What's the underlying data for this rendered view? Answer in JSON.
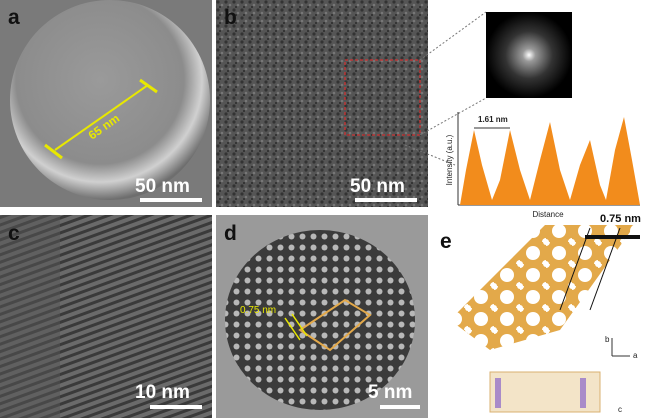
{
  "panels": [
    {
      "label": "a",
      "scale_bar": "50 nm",
      "annotation": "65 nm"
    },
    {
      "label": "b",
      "scale_bar": "50 nm"
    },
    {
      "label": "c",
      "scale_bar": "10 nm"
    },
    {
      "label": "d",
      "scale_bar": "5 nm",
      "annotation": "0.75 nm"
    },
    {
      "label": "e",
      "annotation": "0.75 nm",
      "axes": [
        "b",
        "a",
        "c"
      ]
    }
  ],
  "profile": {
    "spacing": "1.61 nm",
    "y_label": "Intensity (a.u.)",
    "x_label": "Distance"
  }
}
